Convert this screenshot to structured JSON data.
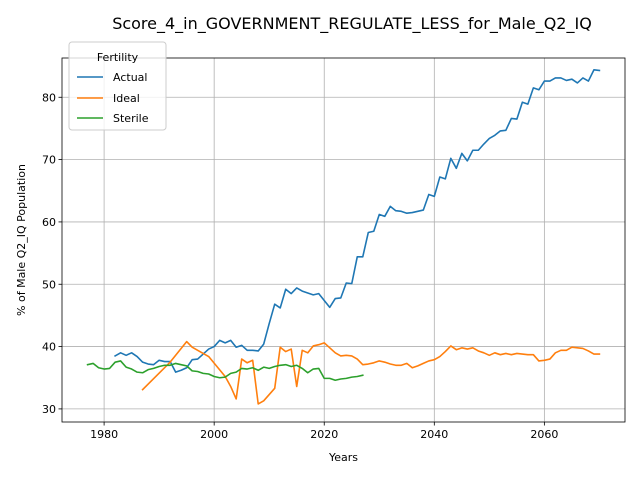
{
  "chart_data": {
    "type": "line",
    "title": "Score_4_in_GOVERNMENT_REGULATE_LESS_for_Male_Q2_IQ",
    "xlabel": "Years",
    "ylabel": "% of Male Q2_IQ Population",
    "xlim": [
      1972.35,
      2074.65
    ],
    "ylim": [
      27.9,
      86.3
    ],
    "xticks": [
      1980,
      2000,
      2020,
      2040,
      2060
    ],
    "yticks": [
      30,
      40,
      50,
      60,
      70,
      80
    ],
    "grid": true,
    "legend": {
      "title": "Fertility",
      "placement": "upper-left"
    },
    "series": [
      {
        "name": "Actual",
        "color": "#1f77b4",
        "points": [
          [
            1982,
            38.5
          ],
          [
            1983,
            39
          ],
          [
            1984,
            38.6
          ],
          [
            1985,
            39
          ],
          [
            1986,
            38.4
          ],
          [
            1987,
            37.5
          ],
          [
            1988,
            37.2
          ],
          [
            1989,
            37.1
          ],
          [
            1990,
            37.8
          ],
          [
            1991,
            37.6
          ],
          [
            1992,
            37.6
          ],
          [
            1993,
            35.9
          ],
          [
            1994,
            36.2
          ],
          [
            1995,
            36.6
          ],
          [
            1996,
            37.9
          ],
          [
            1997,
            38
          ],
          [
            1998,
            38.8
          ],
          [
            1999,
            39.6
          ],
          [
            2000,
            40
          ],
          [
            2001,
            41
          ],
          [
            2002,
            40.6
          ],
          [
            2003,
            41
          ],
          [
            2004,
            39.9
          ],
          [
            2005,
            40.2
          ],
          [
            2006,
            39.4
          ],
          [
            2007,
            39.4
          ],
          [
            2008,
            39.3
          ],
          [
            2009,
            40.4
          ],
          [
            2010,
            43.7
          ],
          [
            2011,
            46.8
          ],
          [
            2012,
            46.2
          ],
          [
            2013,
            49.2
          ],
          [
            2014,
            48.5
          ],
          [
            2015,
            49.4
          ],
          [
            2016,
            48.9
          ],
          [
            2017,
            48.6
          ],
          [
            2018,
            48.3
          ],
          [
            2019,
            48.5
          ],
          [
            2020,
            47.4
          ],
          [
            2021,
            46.3
          ],
          [
            2022,
            47.7
          ],
          [
            2023,
            47.8
          ],
          [
            2024,
            50.2
          ],
          [
            2025,
            50.1
          ],
          [
            2026,
            54.4
          ],
          [
            2027,
            54.4
          ],
          [
            2028,
            58.3
          ],
          [
            2029,
            58.5
          ],
          [
            2030,
            61.2
          ],
          [
            2031,
            60.9
          ],
          [
            2032,
            62.5
          ],
          [
            2033,
            61.8
          ],
          [
            2034,
            61.7
          ],
          [
            2035,
            61.4
          ],
          [
            2036,
            61.5
          ],
          [
            2037,
            61.7
          ],
          [
            2038,
            61.9
          ],
          [
            2039,
            64.4
          ],
          [
            2040,
            64.1
          ],
          [
            2041,
            67.2
          ],
          [
            2042,
            66.9
          ],
          [
            2043,
            70.2
          ],
          [
            2044,
            68.6
          ],
          [
            2045,
            71
          ],
          [
            2046,
            69.8
          ],
          [
            2047,
            71.5
          ],
          [
            2048,
            71.5
          ],
          [
            2049,
            72.5
          ],
          [
            2050,
            73.4
          ],
          [
            2051,
            73.9
          ],
          [
            2052,
            74.6
          ],
          [
            2053,
            74.7
          ],
          [
            2054,
            76.6
          ],
          [
            2055,
            76.5
          ],
          [
            2056,
            79.2
          ],
          [
            2057,
            78.9
          ],
          [
            2058,
            81.5
          ],
          [
            2059,
            81.2
          ],
          [
            2060,
            82.6
          ],
          [
            2061,
            82.6
          ],
          [
            2062,
            83.1
          ],
          [
            2063,
            83.1
          ],
          [
            2064,
            82.7
          ],
          [
            2065,
            82.9
          ],
          [
            2066,
            82.3
          ],
          [
            2067,
            83.1
          ],
          [
            2068,
            82.6
          ],
          [
            2069,
            84.4
          ],
          [
            2070,
            84.3
          ]
        ]
      },
      {
        "name": "Ideal",
        "color": "#ff7f0e",
        "points": [
          [
            1987,
            33.1
          ],
          [
            1992,
            37.5
          ],
          [
            1995,
            40.8
          ],
          [
            1996,
            39.9
          ],
          [
            1999,
            38.4
          ],
          [
            2002,
            35.2
          ],
          [
            2003,
            33.6
          ],
          [
            2004,
            31.6
          ],
          [
            2005,
            38
          ],
          [
            2006,
            37.4
          ],
          [
            2007,
            37.8
          ],
          [
            2008,
            30.8
          ],
          [
            2009,
            31.3
          ],
          [
            2011,
            33.3
          ],
          [
            2012,
            39.9
          ],
          [
            2013,
            39.2
          ],
          [
            2014,
            39.6
          ],
          [
            2015,
            33.6
          ],
          [
            2016,
            39.4
          ],
          [
            2017,
            39
          ],
          [
            2018,
            40.1
          ],
          [
            2019,
            40.3
          ],
          [
            2020,
            40.6
          ],
          [
            2021,
            39.8
          ],
          [
            2022,
            39
          ],
          [
            2023,
            38.5
          ],
          [
            2024,
            38.6
          ],
          [
            2025,
            38.5
          ],
          [
            2026,
            38
          ],
          [
            2027,
            37.1
          ],
          [
            2028,
            37.2
          ],
          [
            2029,
            37.4
          ],
          [
            2030,
            37.7
          ],
          [
            2031,
            37.5
          ],
          [
            2032,
            37.2
          ],
          [
            2033,
            37
          ],
          [
            2034,
            37
          ],
          [
            2035,
            37.3
          ],
          [
            2036,
            36.6
          ],
          [
            2037,
            36.9
          ],
          [
            2038,
            37.3
          ],
          [
            2039,
            37.7
          ],
          [
            2040,
            37.9
          ],
          [
            2041,
            38.4
          ],
          [
            2042,
            39.2
          ],
          [
            2043,
            40.1
          ],
          [
            2044,
            39.5
          ],
          [
            2045,
            39.8
          ],
          [
            2046,
            39.6
          ],
          [
            2047,
            39.8
          ],
          [
            2048,
            39.3
          ],
          [
            2049,
            39
          ],
          [
            2050,
            38.6
          ],
          [
            2051,
            39
          ],
          [
            2052,
            38.7
          ],
          [
            2053,
            38.9
          ],
          [
            2054,
            38.7
          ],
          [
            2055,
            38.9
          ],
          [
            2056,
            38.8
          ],
          [
            2057,
            38.7
          ],
          [
            2058,
            38.7
          ],
          [
            2059,
            37.7
          ],
          [
            2060,
            37.8
          ],
          [
            2061,
            38
          ],
          [
            2062,
            39
          ],
          [
            2063,
            39.4
          ],
          [
            2064,
            39.4
          ],
          [
            2065,
            39.9
          ],
          [
            2066,
            39.8
          ],
          [
            2067,
            39.7
          ],
          [
            2068,
            39.3
          ],
          [
            2069,
            38.8
          ],
          [
            2070,
            38.8
          ]
        ]
      },
      {
        "name": "Sterile",
        "color": "#2ca02c",
        "points": [
          [
            1977,
            37.1
          ],
          [
            1978,
            37.3
          ],
          [
            1979,
            36.6
          ],
          [
            1980,
            36.4
          ],
          [
            1981,
            36.5
          ],
          [
            1982,
            37.5
          ],
          [
            1983,
            37.7
          ],
          [
            1984,
            36.7
          ],
          [
            1985,
            36.4
          ],
          [
            1986,
            35.9
          ],
          [
            1987,
            35.8
          ],
          [
            1988,
            36.3
          ],
          [
            1989,
            36.5
          ],
          [
            1990,
            36.8
          ],
          [
            1991,
            37
          ],
          [
            1992,
            37
          ],
          [
            1993,
            37.3
          ],
          [
            1994,
            37.1
          ],
          [
            1995,
            36.9
          ],
          [
            1996,
            36.1
          ],
          [
            1997,
            36
          ],
          [
            1998,
            35.7
          ],
          [
            1999,
            35.6
          ],
          [
            2000,
            35.2
          ],
          [
            2001,
            35
          ],
          [
            2002,
            35.1
          ],
          [
            2003,
            35.7
          ],
          [
            2004,
            35.9
          ],
          [
            2005,
            36.5
          ],
          [
            2006,
            36.4
          ],
          [
            2007,
            36.6
          ],
          [
            2008,
            36.2
          ],
          [
            2009,
            36.7
          ],
          [
            2010,
            36.5
          ],
          [
            2011,
            36.8
          ],
          [
            2012,
            37
          ],
          [
            2013,
            37.1
          ],
          [
            2014,
            36.8
          ],
          [
            2015,
            37
          ],
          [
            2016,
            36.5
          ],
          [
            2017,
            35.8
          ],
          [
            2018,
            36.4
          ],
          [
            2019,
            36.5
          ],
          [
            2020,
            34.9
          ],
          [
            2021,
            34.9
          ],
          [
            2022,
            34.6
          ],
          [
            2023,
            34.8
          ],
          [
            2024,
            34.9
          ],
          [
            2025,
            35.1
          ],
          [
            2026,
            35.2
          ],
          [
            2027,
            35.4
          ]
        ]
      }
    ]
  }
}
